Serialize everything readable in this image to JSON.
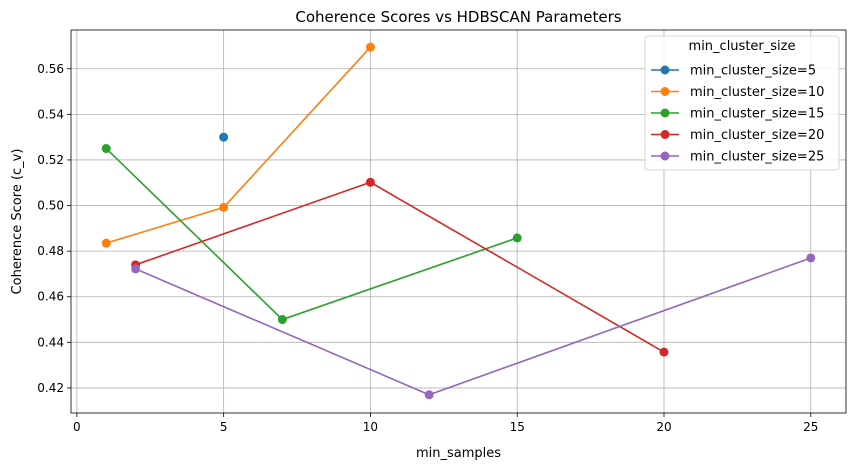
{
  "chart_data": {
    "type": "line",
    "title": "Coherence Scores vs HDBSCAN Parameters",
    "xlabel": "min_samples",
    "ylabel": "Coherence Score (c_v)",
    "xlim": [
      -0.2,
      26.2
    ],
    "ylim": [
      0.409,
      0.577
    ],
    "xticks": [
      0,
      5,
      10,
      15,
      20,
      25
    ],
    "yticks": [
      0.42,
      0.44,
      0.46,
      0.48,
      0.5,
      0.52,
      0.54,
      0.56
    ],
    "ytick_labels": [
      "0.42",
      "0.44",
      "0.46",
      "0.48",
      "0.50",
      "0.52",
      "0.54",
      "0.56"
    ],
    "grid": true,
    "legend": {
      "title": "min_cluster_size",
      "position": "top-right"
    },
    "series": [
      {
        "name": "min_cluster_size=5",
        "color": "#1f77b4",
        "x": [
          5
        ],
        "y": [
          0.53
        ]
      },
      {
        "name": "min_cluster_size=10",
        "color": "#ff7f0e",
        "x": [
          1,
          5,
          10
        ],
        "y": [
          0.4835,
          0.4992,
          0.5695
        ]
      },
      {
        "name": "min_cluster_size=15",
        "color": "#2ca02c",
        "x": [
          1,
          7,
          15
        ],
        "y": [
          0.525,
          0.45,
          0.4858
        ]
      },
      {
        "name": "min_cluster_size=20",
        "color": "#d62728",
        "x": [
          2,
          10,
          20
        ],
        "y": [
          0.474,
          0.5102,
          0.4357
        ]
      },
      {
        "name": "min_cluster_size=25",
        "color": "#9467bd",
        "x": [
          2,
          12,
          25
        ],
        "y": [
          0.4722,
          0.417,
          0.477
        ]
      }
    ]
  }
}
